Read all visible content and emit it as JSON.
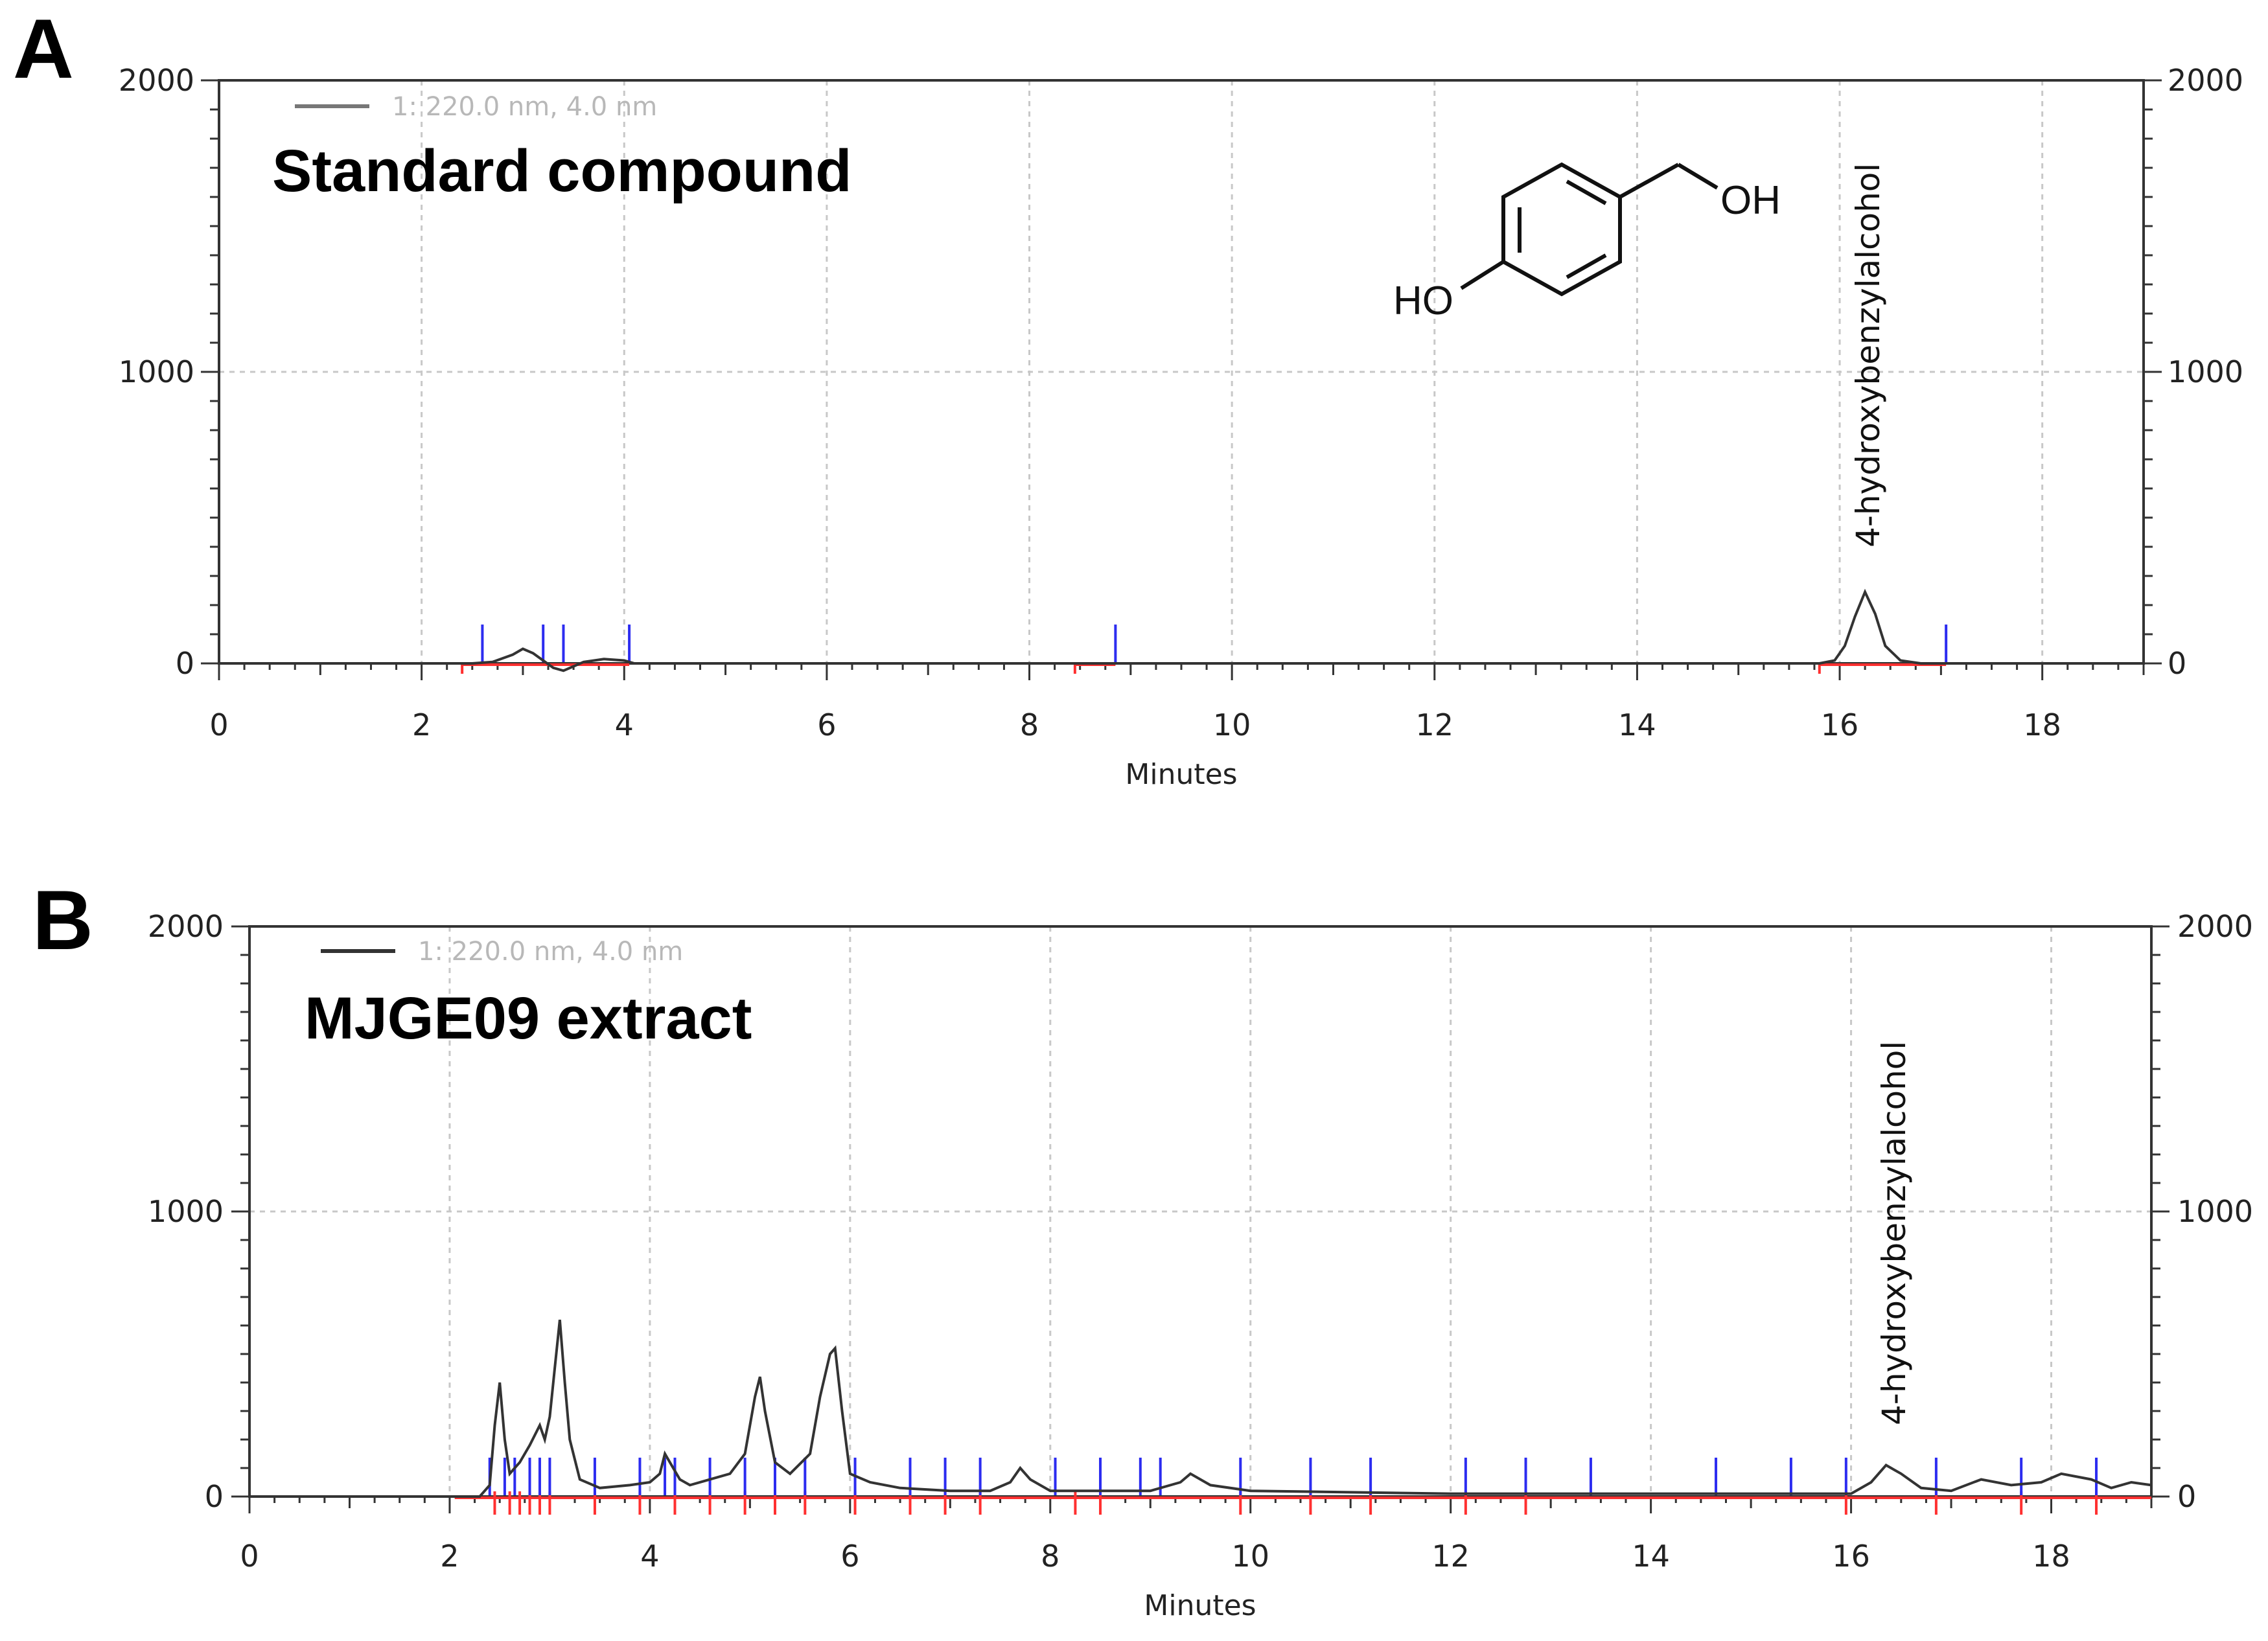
{
  "chart_data": [
    {
      "type": "line",
      "panel": "A",
      "title": "Standard compound",
      "legend": "1: 220.0 nm, 4.0 nm",
      "xlabel": "Minutes",
      "xlim": [
        0,
        19
      ],
      "ylim": [
        0,
        2000
      ],
      "xticks": [
        "0",
        "2",
        "4",
        "6",
        "8",
        "10",
        "12",
        "14",
        "16",
        "18"
      ],
      "yticks": [
        "0",
        "1000",
        "2000"
      ],
      "peak_label": "4-hydroxybenzylalcohol",
      "chem_labels": {
        "ho": "HO",
        "oh": "OH"
      },
      "series": [
        {
          "x": [
            0,
            2.5,
            2.7,
            2.9,
            3.0,
            3.1,
            3.2,
            3.3,
            3.4,
            3.5,
            3.6,
            3.8,
            4.0,
            4.1,
            15.8,
            15.95,
            16.05,
            16.15,
            16.25,
            16.35,
            16.45,
            16.6,
            16.8,
            19
          ],
          "y": [
            0,
            0,
            5,
            30,
            50,
            35,
            10,
            -15,
            -25,
            -10,
            5,
            15,
            10,
            0,
            0,
            10,
            60,
            160,
            245,
            170,
            60,
            10,
            0,
            0
          ]
        }
      ],
      "blue_markers": [
        2.6,
        3.2,
        3.4,
        4.05,
        8.85,
        17.05
      ],
      "baseline_segments": [
        [
          2.4,
          4.05
        ],
        [
          8.45,
          8.85
        ],
        [
          15.8,
          17.05
        ]
      ]
    },
    {
      "type": "line",
      "panel": "B",
      "title": "MJGE09 extract",
      "legend": "1: 220.0 nm, 4.0 nm",
      "xlabel": "Minutes",
      "xlim": [
        0,
        19
      ],
      "ylim": [
        0,
        2000
      ],
      "xticks": [
        "0",
        "2",
        "4",
        "6",
        "8",
        "10",
        "12",
        "14",
        "16",
        "18"
      ],
      "yticks": [
        "0",
        "1000",
        "2000"
      ],
      "peak_label": "4-hydroxybenzylalcohol",
      "series": [
        {
          "x": [
            0,
            2.3,
            2.4,
            2.45,
            2.5,
            2.55,
            2.6,
            2.7,
            2.8,
            2.9,
            2.95,
            3.0,
            3.05,
            3.1,
            3.15,
            3.2,
            3.3,
            3.5,
            3.8,
            4.0,
            4.1,
            4.15,
            4.2,
            4.3,
            4.4,
            4.6,
            4.8,
            4.95,
            5.05,
            5.1,
            5.15,
            5.25,
            5.4,
            5.6,
            5.7,
            5.8,
            5.85,
            5.92,
            6.0,
            6.2,
            6.5,
            7.0,
            7.4,
            7.6,
            7.7,
            7.8,
            8.0,
            9.0,
            9.3,
            9.4,
            9.6,
            10.0,
            12.0,
            16.0,
            16.2,
            16.35,
            16.5,
            16.7,
            17.0,
            17.3,
            17.6,
            17.9,
            18.1,
            18.4,
            18.6,
            18.8,
            19
          ],
          "y": [
            0,
            0,
            40,
            250,
            400,
            200,
            80,
            120,
            180,
            250,
            200,
            280,
            450,
            620,
            400,
            200,
            60,
            30,
            40,
            50,
            80,
            150,
            120,
            60,
            40,
            60,
            80,
            150,
            350,
            420,
            300,
            120,
            80,
            150,
            350,
            500,
            520,
            300,
            80,
            50,
            30,
            20,
            20,
            50,
            100,
            60,
            20,
            20,
            50,
            80,
            40,
            20,
            10,
            10,
            50,
            110,
            80,
            30,
            20,
            60,
            40,
            50,
            80,
            60,
            30,
            50,
            40
          ]
        }
      ],
      "blue_markers": [
        2.4,
        2.55,
        2.65,
        2.8,
        2.9,
        3.0,
        3.45,
        3.9,
        4.15,
        4.25,
        4.6,
        4.95,
        5.25,
        5.55,
        6.05,
        6.6,
        6.95,
        7.3,
        8.05,
        8.5,
        8.9,
        9.1,
        9.9,
        10.6,
        11.2,
        12.15,
        12.75,
        13.4,
        14.65,
        15.4,
        15.95,
        16.85,
        17.7,
        18.45
      ],
      "red_markers": [
        2.45,
        2.6,
        2.7,
        2.8,
        2.9,
        3.0,
        3.45,
        3.9,
        4.25,
        4.6,
        4.95,
        5.25,
        5.55,
        6.05,
        6.6,
        6.95,
        7.3,
        8.25,
        8.5,
        9.9,
        10.6,
        11.2,
        12.15,
        12.75,
        15.95,
        16.85,
        17.7,
        18.45
      ],
      "baseline_segments": [
        [
          2.05,
          19
        ]
      ]
    }
  ]
}
